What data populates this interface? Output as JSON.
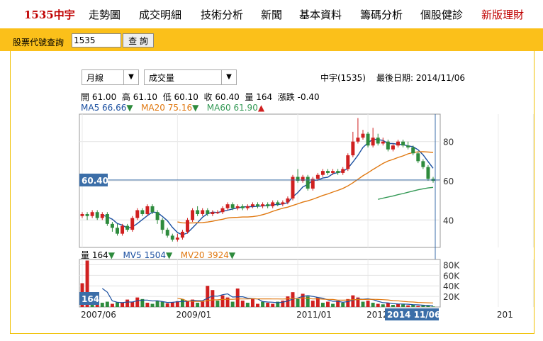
{
  "nav": {
    "brand": "1535中宇",
    "items": [
      "走勢圖",
      "成交明細",
      "技術分析",
      "新聞",
      "基本資料",
      "籌碼分析",
      "個股健診",
      "新版理財"
    ]
  },
  "query": {
    "label": "股票代號查詢",
    "value": "1535",
    "button": "查 詢"
  },
  "controls": {
    "period": "月線",
    "indicator": "成交量"
  },
  "stock": {
    "title": "中宇(1535)",
    "last_date_label": "最後日期: 2014/11/06"
  },
  "ohlc": {
    "open_label": "開",
    "open": "61.00",
    "high_label": "高",
    "high": "61.10",
    "low_label": "低",
    "low": "60.10",
    "close_label": "收",
    "close": "60.40",
    "vol_label": "量",
    "vol": "164",
    "chg_label": "漲跌",
    "chg": "-0.40"
  },
  "ma": {
    "ma5_label": "MA5",
    "ma5": "66.66",
    "ma5_dir": "▼",
    "ma20_label": "MA20",
    "ma20": "75.16",
    "ma20_dir": "▼",
    "ma60_label": "MA60",
    "ma60": "61.90",
    "ma60_dir": "▲"
  },
  "vol": {
    "label": "量",
    "value": "164",
    "mv5_label": "MV5",
    "mv5": "1504",
    "mv5_dir": "▼",
    "mv20_label": "MV20",
    "mv20": "3924",
    "mv20_dir": "▼"
  },
  "colors": {
    "up": "#d02020",
    "down": "#2e8b3d",
    "ma5": "#1a4fa0",
    "ma20": "#e07810",
    "ma60": "#339955",
    "accent": "#fbc01a",
    "price_tag": "#3b6ea8"
  },
  "chart_data": {
    "type": "candlestick",
    "y_ticks": [
      "80",
      "60",
      "40"
    ],
    "price_ylim": [
      26,
      94
    ],
    "current_price_tag": "60.40",
    "vol_ticks": [
      "80K",
      "60K",
      "40K",
      "20K"
    ],
    "vol_ylim": [
      0,
      90
    ],
    "current_vol_tag": "164",
    "x_ticks": [
      "2007/06",
      "2009/01",
      "2011/01",
      "2012/05",
      "201",
      "2014 11/06"
    ],
    "last_date_tag": "2014 11/06",
    "x_tick_index": [
      0,
      19,
      43,
      57,
      83,
      90
    ],
    "candles": [
      [
        42,
        43,
        41,
        44,
        "up"
      ],
      [
        43,
        42,
        40,
        44,
        "down"
      ],
      [
        42,
        44,
        41,
        45,
        "up"
      ],
      [
        44,
        41,
        40,
        45,
        "down"
      ],
      [
        41,
        43,
        40,
        44,
        "up"
      ],
      [
        43,
        38,
        37,
        44,
        "down"
      ],
      [
        38,
        36,
        34,
        39,
        "down"
      ],
      [
        36,
        33,
        32,
        38,
        "down"
      ],
      [
        33,
        37,
        32,
        38,
        "up"
      ],
      [
        37,
        35,
        34,
        38,
        "down"
      ],
      [
        35,
        41,
        34,
        42,
        "up"
      ],
      [
        41,
        45,
        40,
        46,
        "up"
      ],
      [
        45,
        43,
        42,
        46,
        "down"
      ],
      [
        43,
        47,
        42,
        48,
        "up"
      ],
      [
        47,
        44,
        43,
        48,
        "down"
      ],
      [
        44,
        40,
        38,
        45,
        "down"
      ],
      [
        40,
        35,
        33,
        41,
        "down"
      ],
      [
        35,
        32,
        31,
        36,
        "down"
      ],
      [
        32,
        30,
        29,
        33,
        "down"
      ],
      [
        30,
        31,
        29,
        33,
        "up"
      ],
      [
        31,
        34,
        30,
        35,
        "up"
      ],
      [
        34,
        40,
        33,
        41,
        "up"
      ],
      [
        40,
        45,
        39,
        46,
        "up"
      ],
      [
        45,
        43,
        42,
        47,
        "down"
      ],
      [
        43,
        45,
        42,
        46,
        "up"
      ],
      [
        45,
        43,
        42,
        46,
        "down"
      ],
      [
        43,
        44,
        42,
        45,
        "up"
      ],
      [
        44,
        44,
        43,
        45,
        "up"
      ],
      [
        44,
        46,
        43,
        47,
        "up"
      ],
      [
        46,
        48,
        45,
        49,
        "up"
      ],
      [
        48,
        46,
        45,
        49,
        "down"
      ],
      [
        46,
        47,
        45,
        48,
        "up"
      ],
      [
        47,
        46,
        45,
        48,
        "down"
      ],
      [
        46,
        47,
        45,
        48,
        "up"
      ],
      [
        47,
        48,
        46,
        49,
        "up"
      ],
      [
        48,
        47,
        46,
        49,
        "down"
      ],
      [
        47,
        48,
        46,
        49,
        "up"
      ],
      [
        48,
        47,
        46,
        49,
        "down"
      ],
      [
        47,
        49,
        46,
        50,
        "up"
      ],
      [
        49,
        48,
        47,
        50,
        "down"
      ],
      [
        48,
        49,
        47,
        50,
        "up"
      ],
      [
        49,
        51,
        48,
        52,
        "up"
      ],
      [
        51,
        62,
        50,
        63,
        "up"
      ],
      [
        62,
        60,
        59,
        66,
        "down"
      ],
      [
        60,
        62,
        59,
        63,
        "up"
      ],
      [
        62,
        56,
        55,
        63,
        "down"
      ],
      [
        56,
        61,
        55,
        62,
        "up"
      ],
      [
        61,
        63,
        60,
        64,
        "up"
      ],
      [
        63,
        65,
        62,
        66,
        "up"
      ],
      [
        65,
        64,
        63,
        66,
        "down"
      ],
      [
        64,
        65,
        63,
        66,
        "up"
      ],
      [
        65,
        64,
        63,
        66,
        "down"
      ],
      [
        64,
        66,
        63,
        67,
        "up"
      ],
      [
        66,
        73,
        65,
        74,
        "up"
      ],
      [
        73,
        80,
        72,
        85,
        "up"
      ],
      [
        80,
        82,
        79,
        92,
        "up"
      ],
      [
        82,
        84,
        81,
        86,
        "up"
      ],
      [
        84,
        78,
        77,
        85,
        "down"
      ],
      [
        78,
        82,
        77,
        87,
        "up"
      ],
      [
        82,
        79,
        78,
        84,
        "down"
      ],
      [
        79,
        80,
        78,
        82,
        "up"
      ],
      [
        80,
        76,
        75,
        81,
        "down"
      ],
      [
        76,
        78,
        75,
        79,
        "up"
      ],
      [
        78,
        80,
        77,
        81,
        "up"
      ],
      [
        80,
        78,
        77,
        81,
        "down"
      ],
      [
        78,
        77,
        76,
        80,
        "down"
      ],
      [
        77,
        74,
        73,
        78,
        "down"
      ],
      [
        74,
        70,
        69,
        75,
        "down"
      ],
      [
        70,
        67,
        66,
        71,
        "down"
      ],
      [
        67,
        61,
        60,
        68,
        "down"
      ],
      [
        61,
        60,
        59,
        62,
        "down"
      ]
    ],
    "volumes": [
      [
        45,
        "up"
      ],
      [
        88,
        "up"
      ],
      [
        22,
        "down"
      ],
      [
        12,
        "up"
      ],
      [
        8,
        "down"
      ],
      [
        10,
        "down"
      ],
      [
        6,
        "up"
      ],
      [
        9,
        "down"
      ],
      [
        8,
        "up"
      ],
      [
        14,
        "up"
      ],
      [
        10,
        "up"
      ],
      [
        18,
        "up"
      ],
      [
        15,
        "down"
      ],
      [
        8,
        "up"
      ],
      [
        6,
        "down"
      ],
      [
        12,
        "down"
      ],
      [
        10,
        "down"
      ],
      [
        7,
        "up"
      ],
      [
        9,
        "up"
      ],
      [
        11,
        "up"
      ],
      [
        15,
        "down"
      ],
      [
        12,
        "up"
      ],
      [
        14,
        "up"
      ],
      [
        8,
        "down"
      ],
      [
        10,
        "up"
      ],
      [
        40,
        "up"
      ],
      [
        32,
        "up"
      ],
      [
        12,
        "down"
      ],
      [
        22,
        "up"
      ],
      [
        18,
        "up"
      ],
      [
        10,
        "down"
      ],
      [
        35,
        "up"
      ],
      [
        12,
        "up"
      ],
      [
        8,
        "down"
      ],
      [
        15,
        "up"
      ],
      [
        6,
        "up"
      ],
      [
        10,
        "down"
      ],
      [
        8,
        "up"
      ],
      [
        6,
        "up"
      ],
      [
        10,
        "down"
      ],
      [
        12,
        "up"
      ],
      [
        20,
        "up"
      ],
      [
        28,
        "up"
      ],
      [
        15,
        "down"
      ],
      [
        25,
        "up"
      ],
      [
        20,
        "down"
      ],
      [
        12,
        "up"
      ],
      [
        18,
        "up"
      ],
      [
        8,
        "down"
      ],
      [
        10,
        "up"
      ],
      [
        6,
        "down"
      ],
      [
        12,
        "up"
      ],
      [
        8,
        "down"
      ],
      [
        15,
        "up"
      ],
      [
        22,
        "up"
      ],
      [
        18,
        "up"
      ],
      [
        10,
        "down"
      ],
      [
        12,
        "up"
      ],
      [
        8,
        "down"
      ],
      [
        6,
        "up"
      ],
      [
        5,
        "down"
      ],
      [
        8,
        "up"
      ],
      [
        4,
        "down"
      ],
      [
        6,
        "up"
      ],
      [
        5,
        "down"
      ],
      [
        3,
        "up"
      ],
      [
        4,
        "down"
      ],
      [
        2,
        "up"
      ],
      [
        3,
        "down"
      ],
      [
        2,
        "down"
      ],
      [
        1,
        "down"
      ]
    ]
  }
}
